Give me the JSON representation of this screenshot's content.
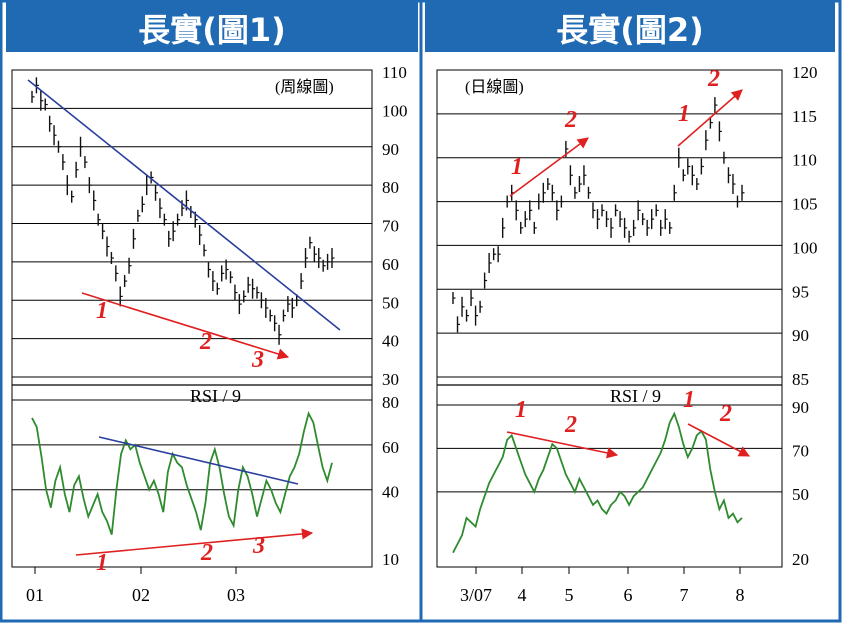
{
  "theme": {
    "frame_blue": "#1f6ab3",
    "title_bg": "#1f6ab3",
    "title_text": "#ffffff",
    "grid": "#000000",
    "price": "#111111",
    "rsi": "#2e8b2e",
    "trend_blue": "#2a3f9e",
    "trend_red": "#e02020"
  },
  "panels": [
    {
      "title": "長實(圖1)",
      "subtitle": "(周線圖)",
      "rsi_label": "RSI / 9",
      "x_ticks": [
        "01",
        "02",
        "03"
      ],
      "markers_price": [
        "1",
        "2",
        "3"
      ],
      "markers_rsi": [
        "1",
        "2",
        "3"
      ],
      "chart_data": {
        "type": "line",
        "title": "長實(圖1)",
        "price": {
          "ylim": [
            30,
            110
          ],
          "yticks": [
            30,
            40,
            50,
            60,
            70,
            80,
            90,
            100,
            110
          ],
          "values": [
            103,
            106,
            102,
            101,
            96,
            93,
            90,
            86,
            80,
            77,
            84,
            90,
            86,
            80,
            76,
            71,
            68,
            64,
            61,
            57,
            51,
            55,
            59,
            66,
            72,
            75,
            80,
            82,
            78,
            74,
            71,
            66,
            68,
            71,
            74,
            76,
            73,
            71,
            67,
            63,
            58,
            55,
            53,
            57,
            58,
            56,
            52,
            49,
            51,
            54,
            53,
            52,
            50,
            48,
            46,
            44,
            41,
            46,
            49,
            48,
            50,
            55,
            61,
            65,
            62,
            61,
            59,
            60,
            61
          ]
        },
        "rsi": {
          "ylim": [
            10,
            80
          ],
          "yticks": [
            10,
            40,
            60,
            80
          ],
          "values": [
            72,
            68,
            55,
            40,
            32,
            44,
            50,
            38,
            30,
            42,
            46,
            36,
            28,
            33,
            38,
            30,
            26,
            20,
            40,
            56,
            62,
            58,
            60,
            52,
            46,
            40,
            44,
            38,
            30,
            48,
            56,
            52,
            50,
            42,
            36,
            30,
            22,
            34,
            52,
            58,
            50,
            38,
            28,
            24,
            40,
            50,
            46,
            38,
            28,
            36,
            44,
            40,
            34,
            30,
            38,
            46,
            50,
            56,
            66,
            74,
            70,
            60,
            50,
            44,
            52
          ]
        }
      }
    },
    {
      "title": "長實(圖2)",
      "subtitle": "(日線圖)",
      "rsi_label": "RSI / 9",
      "x_ticks": [
        "3/07",
        "4",
        "5",
        "6",
        "7",
        "8"
      ],
      "markers_price": [
        "1",
        "2",
        "1",
        "2"
      ],
      "markers_rsi": [
        "1",
        "2",
        "1",
        "2"
      ],
      "chart_data": {
        "type": "line",
        "title": "長實(圖2)",
        "price": {
          "ylim": [
            85,
            120
          ],
          "yticks": [
            85,
            90,
            95,
            100,
            105,
            110,
            115,
            120
          ],
          "values": [
            94,
            91,
            93,
            92,
            94,
            92,
            93,
            96,
            98,
            99,
            99,
            102,
            105,
            106,
            104,
            102,
            103,
            104,
            102,
            105,
            106,
            107,
            106,
            104,
            105,
            111,
            108,
            106,
            107,
            108,
            106,
            104,
            103,
            104,
            103,
            102,
            104,
            103,
            102,
            101,
            102,
            104,
            103,
            102,
            103,
            104,
            102,
            103,
            102,
            106,
            110,
            108,
            109,
            108,
            107,
            109,
            112,
            114,
            116,
            113,
            110,
            108,
            107,
            105,
            106
          ]
        },
        "rsi": {
          "ylim": [
            20,
            90
          ],
          "yticks": [
            20,
            50,
            70,
            90
          ],
          "values": [
            22,
            26,
            30,
            38,
            36,
            34,
            42,
            48,
            54,
            58,
            62,
            66,
            74,
            76,
            70,
            64,
            58,
            54,
            50,
            56,
            60,
            66,
            72,
            70,
            64,
            58,
            54,
            50,
            56,
            52,
            48,
            44,
            46,
            42,
            40,
            44,
            46,
            50,
            48,
            44,
            48,
            50,
            52,
            56,
            60,
            64,
            68,
            74,
            82,
            86,
            80,
            72,
            66,
            70,
            76,
            78,
            74,
            60,
            50,
            42,
            46,
            38,
            40,
            36,
            38
          ]
        }
      }
    }
  ]
}
